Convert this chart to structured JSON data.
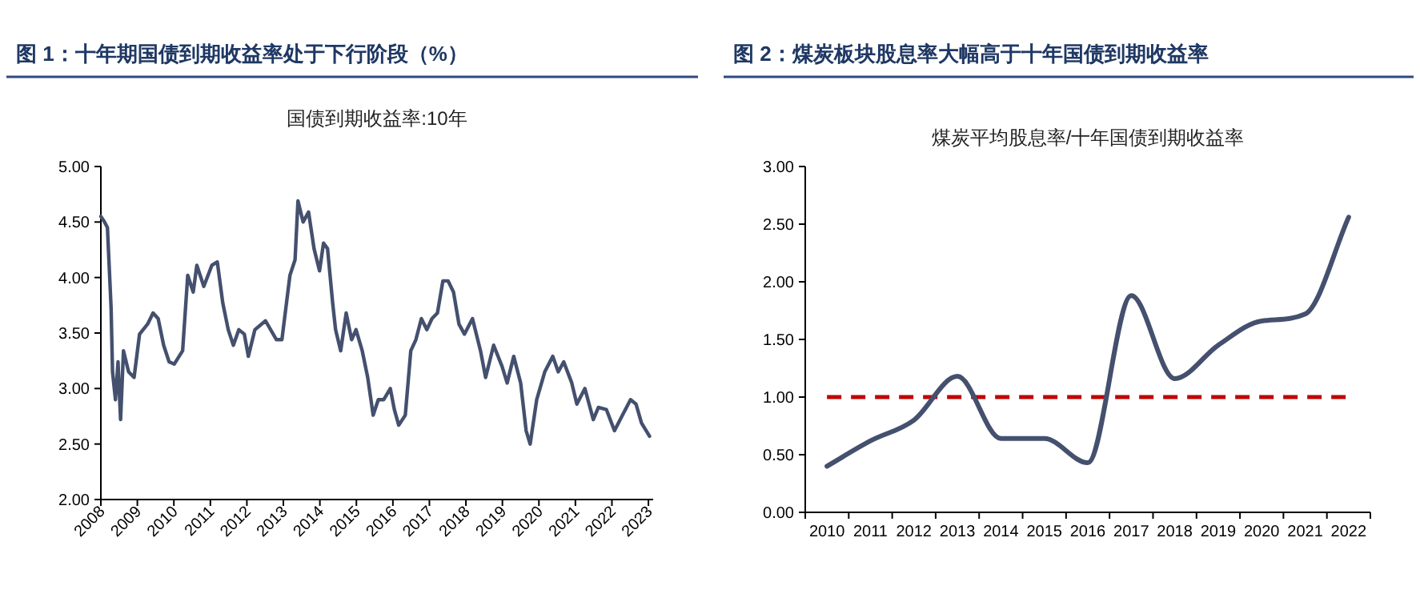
{
  "chart_data": [
    {
      "type": "line",
      "title": "图 1：十年期国债到期收益率处于下行阶段（%）",
      "subtitle": "国债到期收益率:10年",
      "x": [
        2008.0,
        2008.1,
        2008.18,
        2008.28,
        2008.32,
        2008.4,
        2008.47,
        2008.54,
        2008.62,
        2008.76,
        2008.91,
        2009.06,
        2009.28,
        2009.43,
        2009.57,
        2009.72,
        2009.87,
        2010.01,
        2010.24,
        2010.38,
        2010.53,
        2010.63,
        2010.82,
        2011.04,
        2011.19,
        2011.34,
        2011.49,
        2011.63,
        2011.78,
        2011.93,
        2012.04,
        2012.22,
        2012.51,
        2012.81,
        2012.96,
        2013.18,
        2013.32,
        2013.4,
        2013.54,
        2013.69,
        2013.84,
        2013.99,
        2014.1,
        2014.21,
        2014.35,
        2014.43,
        2014.57,
        2014.72,
        2014.87,
        2014.99,
        2015.16,
        2015.31,
        2015.46,
        2015.6,
        2015.75,
        2015.93,
        2016.04,
        2016.16,
        2016.34,
        2016.49,
        2016.63,
        2016.78,
        2016.93,
        2017.07,
        2017.22,
        2017.37,
        2017.51,
        2017.66,
        2017.81,
        2017.96,
        2018.18,
        2018.4,
        2018.54,
        2018.76,
        2018.99,
        2019.13,
        2019.31,
        2019.5,
        2019.65,
        2019.76,
        2019.94,
        2020.16,
        2020.38,
        2020.53,
        2020.68,
        2020.9,
        2021.04,
        2021.26,
        2021.49,
        2021.63,
        2021.85,
        2022.07,
        2022.29,
        2022.51,
        2022.66,
        2022.81,
        2023.03
      ],
      "series": [
        {
          "color": "#44506e",
          "values": [
            4.55,
            4.5,
            4.45,
            3.73,
            3.15,
            2.9,
            3.24,
            2.72,
            3.34,
            3.15,
            3.1,
            3.49,
            3.58,
            3.68,
            3.63,
            3.39,
            3.24,
            3.22,
            3.34,
            4.02,
            3.87,
            4.11,
            3.92,
            4.11,
            4.14,
            3.77,
            3.53,
            3.39,
            3.53,
            3.49,
            3.29,
            3.53,
            3.61,
            3.44,
            3.44,
            4.02,
            4.16,
            4.69,
            4.5,
            4.59,
            4.26,
            4.06,
            4.31,
            4.26,
            3.77,
            3.53,
            3.34,
            3.68,
            3.44,
            3.53,
            3.34,
            3.1,
            2.76,
            2.9,
            2.9,
            3.0,
            2.81,
            2.67,
            2.76,
            3.34,
            3.44,
            3.63,
            3.53,
            3.63,
            3.68,
            3.97,
            3.97,
            3.87,
            3.58,
            3.49,
            3.63,
            3.34,
            3.1,
            3.39,
            3.2,
            3.05,
            3.29,
            3.05,
            2.62,
            2.5,
            2.9,
            3.15,
            3.29,
            3.15,
            3.24,
            3.05,
            2.86,
            3.0,
            2.72,
            2.83,
            2.81,
            2.62,
            2.76,
            2.9,
            2.86,
            2.69,
            2.57
          ]
        }
      ],
      "xlim": [
        2008,
        2023.13
      ],
      "xticks": [
        2008,
        2009,
        2010,
        2011,
        2012,
        2013,
        2014,
        2015,
        2016,
        2017,
        2018,
        2019,
        2020,
        2021,
        2022,
        2023
      ],
      "ylim": [
        2,
        5
      ],
      "yticks": [
        {
          "value": 2,
          "label": "2.00"
        },
        {
          "value": 2.5,
          "label": "2.50"
        },
        {
          "value": 3,
          "label": "3.00"
        },
        {
          "value": 3.5,
          "label": "3.50"
        },
        {
          "value": 4,
          "label": "4.00"
        },
        {
          "value": 4.5,
          "label": "4.50"
        },
        {
          "value": 5,
          "label": "5.00"
        }
      ],
      "grid": false
    },
    {
      "type": "line",
      "title": "图 2：煤炭板块股息率大幅高于十年国债到期收益率",
      "subtitle": "煤炭平均股息率/十年国债到期收益率",
      "categories": [
        "2010",
        "2011",
        "2012",
        "2013",
        "2014",
        "2015",
        "2016",
        "2017",
        "2018",
        "2019",
        "2020",
        "2021",
        "2022"
      ],
      "series": [
        {
          "color": "#44506e",
          "values": [
            0.4,
            0.62,
            0.8,
            1.18,
            0.64,
            0.64,
            0.43,
            1.88,
            1.16,
            1.45,
            1.66,
            1.72,
            2.56
          ]
        }
      ],
      "ref_lines": [
        {
          "axis": "y",
          "value": 1,
          "color": "#c00000",
          "line_style": "dashed"
        }
      ],
      "ylim": [
        0,
        3
      ],
      "yticks": [
        {
          "value": 0,
          "label": "0.00"
        },
        {
          "value": 0.5,
          "label": "0.50"
        },
        {
          "value": 1,
          "label": "1.00"
        },
        {
          "value": 1.5,
          "label": "1.50"
        },
        {
          "value": 2,
          "label": "2.00"
        },
        {
          "value": 2.5,
          "label": "2.50"
        },
        {
          "value": 3,
          "label": "3.00"
        }
      ],
      "grid": false
    }
  ]
}
